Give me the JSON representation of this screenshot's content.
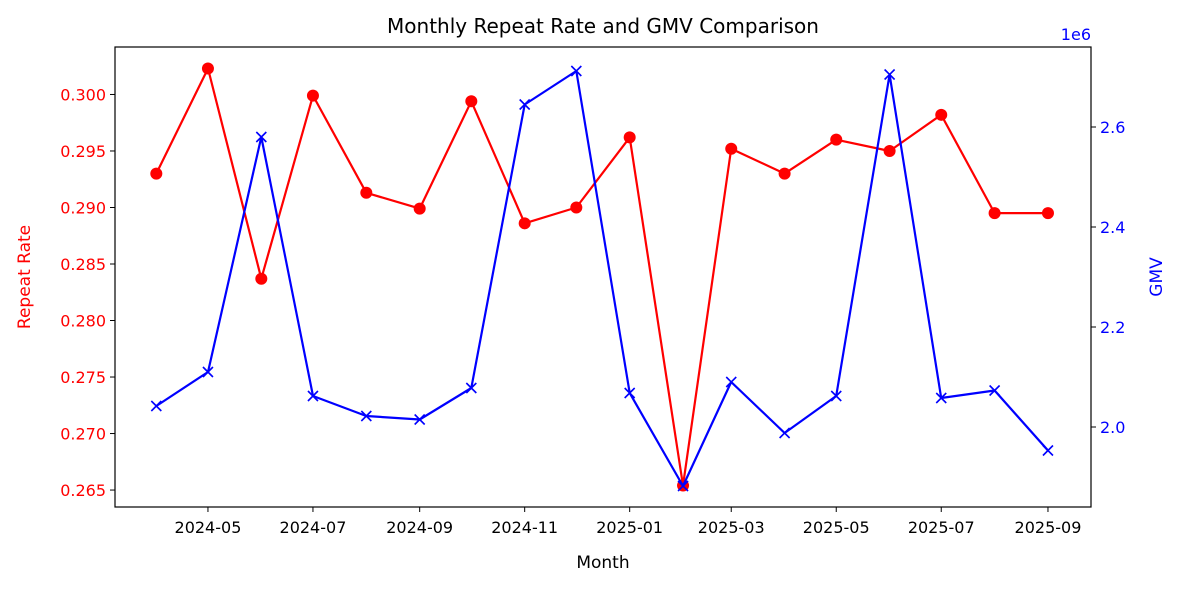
{
  "chart_data": {
    "type": "line",
    "title": "Monthly Repeat Rate and GMV Comparison",
    "xlabel": "Month",
    "x": [
      "2024-04",
      "2024-05",
      "2024-06",
      "2024-07",
      "2024-08",
      "2024-09",
      "2024-10",
      "2024-11",
      "2024-12",
      "2025-01",
      "2025-02",
      "2025-03",
      "2025-04",
      "2025-05",
      "2025-06",
      "2025-07",
      "2025-08",
      "2025-09"
    ],
    "x_ticks": [
      "2024-05",
      "2024-07",
      "2024-09",
      "2024-11",
      "2025-01",
      "2025-03",
      "2025-05",
      "2025-07",
      "2025-09"
    ],
    "xlim": [
      "2024-03-08",
      "2025-09-26"
    ],
    "left_axis": {
      "label": "Repeat Rate",
      "color": "#ff0000",
      "ylim": [
        0.2635,
        0.3042
      ],
      "ticks": [
        "0.265",
        "0.270",
        "0.275",
        "0.280",
        "0.285",
        "0.290",
        "0.295",
        "0.300"
      ]
    },
    "right_axis": {
      "label": "GMV",
      "color": "#0000ff",
      "offset_text": "1e6",
      "ylim": [
        1.84,
        2.76
      ],
      "ticks": [
        "2.0",
        "2.2",
        "2.4",
        "2.6"
      ]
    },
    "series": [
      {
        "axis": "left",
        "color": "#ff0000",
        "marker": "circle",
        "values": [
          0.293,
          0.3023,
          0.2837,
          0.2999,
          0.2913,
          0.2899,
          0.2994,
          0.2886,
          0.29,
          0.2962,
          0.2654,
          0.2952,
          0.293,
          0.296,
          0.295,
          0.2982,
          0.2895,
          0.2895
        ]
      },
      {
        "axis": "right",
        "color": "#0000ff",
        "marker": "x",
        "values": [
          2.042,
          2.11,
          2.58,
          2.062,
          2.022,
          2.015,
          2.078,
          2.645,
          2.712,
          2.068,
          1.882,
          2.09,
          1.988,
          2.062,
          2.705,
          2.058,
          2.073,
          1.953
        ]
      }
    ],
    "grid": false,
    "legend": "none"
  }
}
